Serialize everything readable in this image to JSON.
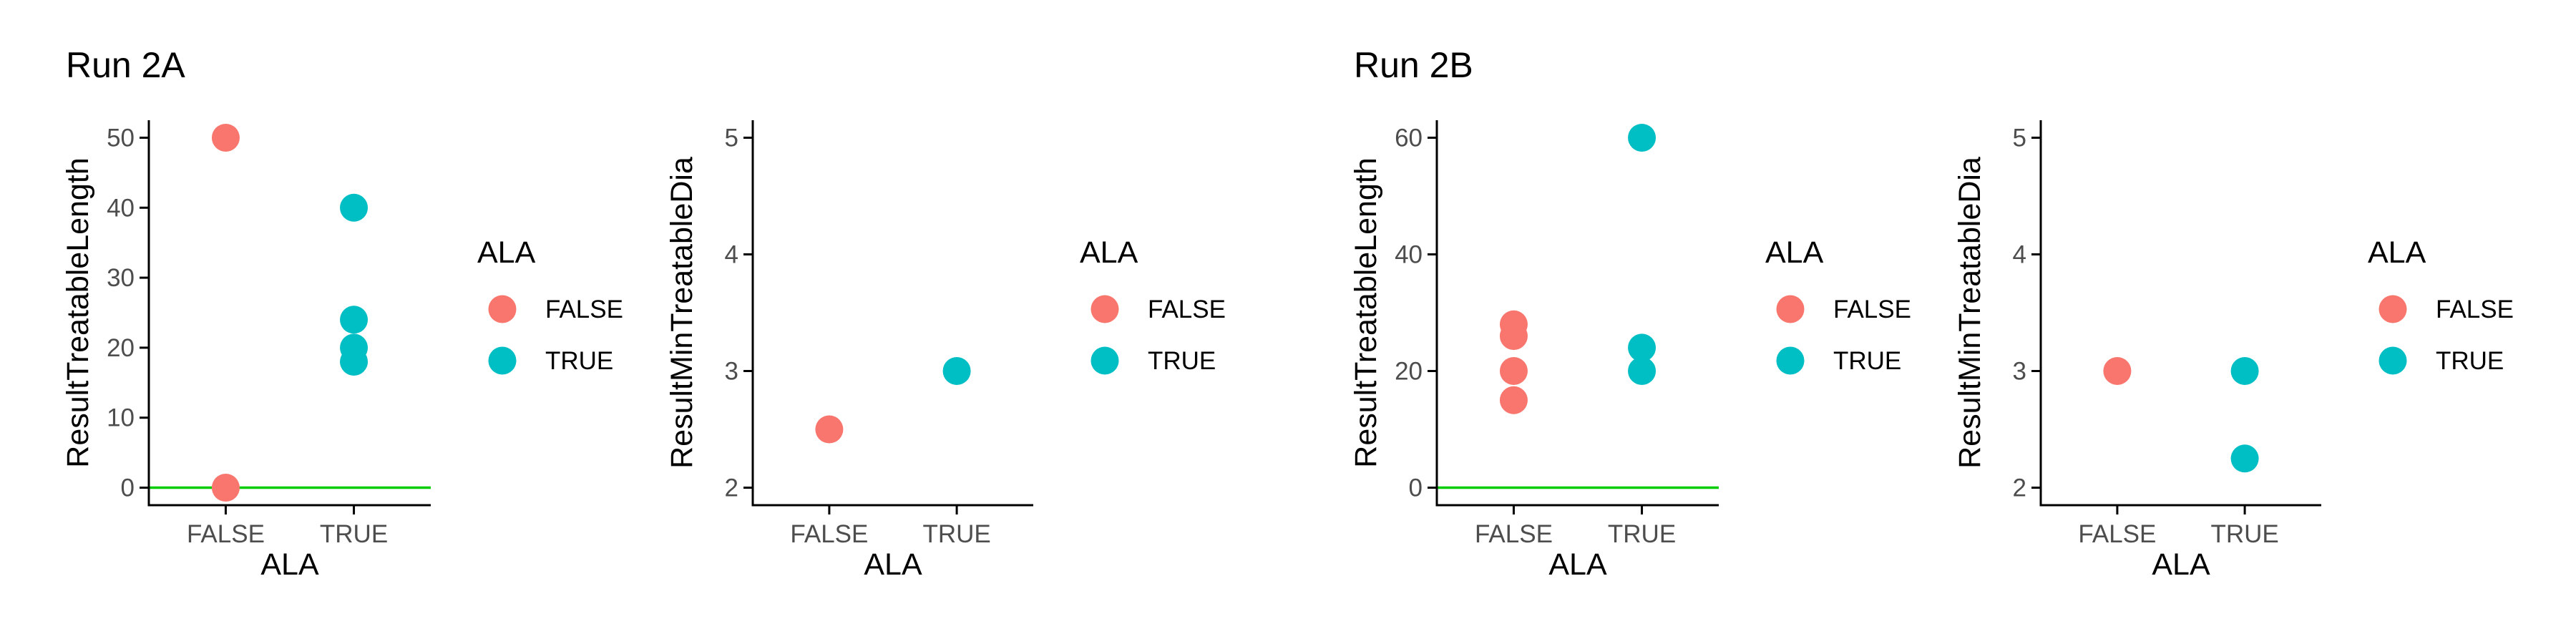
{
  "titles": {
    "run_2a": "Run 2A",
    "run_2b": "Run 2B"
  },
  "colors": {
    "FALSE": "#F8766D",
    "TRUE": "#00BFC4",
    "reference_line": "#00CC00",
    "axis": "#000000",
    "tick_text": "#4D4D4D"
  },
  "chart_data": [
    {
      "type": "scatter",
      "group": "Run 2A",
      "xlabel": "ALA",
      "ylabel": "ResultTreatableLength",
      "categories": [
        "FALSE",
        "TRUE"
      ],
      "ylim": [
        -2.5,
        52.5
      ],
      "yticks": [
        0,
        10,
        20,
        30,
        40,
        50
      ],
      "hline": 0,
      "series": [
        {
          "name": "FALSE",
          "x": [
            "FALSE",
            "FALSE"
          ],
          "y": [
            50,
            0
          ]
        },
        {
          "name": "TRUE",
          "x": [
            "TRUE",
            "TRUE",
            "TRUE",
            "TRUE"
          ],
          "y": [
            40,
            24,
            20,
            18
          ]
        }
      ],
      "legend": {
        "title": "ALA",
        "entries": [
          "FALSE",
          "TRUE"
        ],
        "position": "right"
      }
    },
    {
      "type": "scatter",
      "group": "Run 2A",
      "xlabel": "ALA",
      "ylabel": "ResultMinTreatableDia",
      "categories": [
        "FALSE",
        "TRUE"
      ],
      "ylim": [
        1.85,
        5.15
      ],
      "yticks": [
        2,
        3,
        4,
        5
      ],
      "series": [
        {
          "name": "FALSE",
          "x": [
            "FALSE"
          ],
          "y": [
            2.5
          ]
        },
        {
          "name": "TRUE",
          "x": [
            "TRUE"
          ],
          "y": [
            3
          ]
        }
      ],
      "legend": {
        "title": "ALA",
        "entries": [
          "FALSE",
          "TRUE"
        ],
        "position": "right"
      }
    },
    {
      "type": "scatter",
      "group": "Run 2B",
      "xlabel": "ALA",
      "ylabel": "ResultTreatableLength",
      "categories": [
        "FALSE",
        "TRUE"
      ],
      "ylim": [
        -3,
        63
      ],
      "yticks": [
        0,
        20,
        40,
        60
      ],
      "hline": 0,
      "series": [
        {
          "name": "FALSE",
          "x": [
            "FALSE",
            "FALSE",
            "FALSE",
            "FALSE"
          ],
          "y": [
            28,
            26,
            20,
            15
          ]
        },
        {
          "name": "TRUE",
          "x": [
            "TRUE",
            "TRUE",
            "TRUE"
          ],
          "y": [
            60,
            24,
            20
          ]
        }
      ],
      "legend": {
        "title": "ALA",
        "entries": [
          "FALSE",
          "TRUE"
        ],
        "position": "right"
      }
    },
    {
      "type": "scatter",
      "group": "Run 2B",
      "xlabel": "ALA",
      "ylabel": "ResultMinTreatableDia",
      "categories": [
        "FALSE",
        "TRUE"
      ],
      "ylim": [
        1.85,
        5.15
      ],
      "yticks": [
        2,
        3,
        4,
        5
      ],
      "series": [
        {
          "name": "FALSE",
          "x": [
            "FALSE"
          ],
          "y": [
            3
          ]
        },
        {
          "name": "TRUE",
          "x": [
            "TRUE",
            "TRUE"
          ],
          "y": [
            3,
            2.25
          ]
        }
      ],
      "legend": {
        "title": "ALA",
        "entries": [
          "FALSE",
          "TRUE"
        ],
        "position": "right"
      }
    }
  ]
}
